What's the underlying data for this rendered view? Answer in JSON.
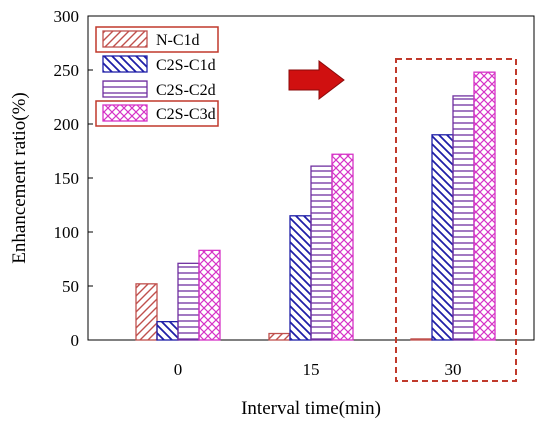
{
  "chart_data": {
    "type": "bar",
    "categories": [
      "0",
      "15",
      "30"
    ],
    "xlabel": "Interval time(min)",
    "ylabel": "Enhancement ratio(%)",
    "ylim": [
      0,
      300
    ],
    "yticks": [
      "0",
      "50",
      "100",
      "150",
      "200",
      "250",
      "300"
    ],
    "grid": false,
    "legend_position": "top-left",
    "series": [
      {
        "name": "N-C1d",
        "values": [
          52,
          6,
          1
        ],
        "color": "#c0504d",
        "pattern": "diagonal-up"
      },
      {
        "name": "C2S-C1d",
        "values": [
          17,
          115,
          190
        ],
        "color": "#1f1fa8",
        "pattern": "diagonal-down"
      },
      {
        "name": "C2S-C2d",
        "values": [
          71,
          161,
          226
        ],
        "color": "#7030a0",
        "pattern": "horizontal"
      },
      {
        "name": "C2S-C3d",
        "values": [
          83,
          172,
          248
        ],
        "color": "#d633c7",
        "pattern": "crosshatch"
      }
    ],
    "highlight": {
      "category": "30",
      "color": "#c0392b",
      "style": "dashed-box",
      "arrow_color": "#d01010"
    }
  }
}
